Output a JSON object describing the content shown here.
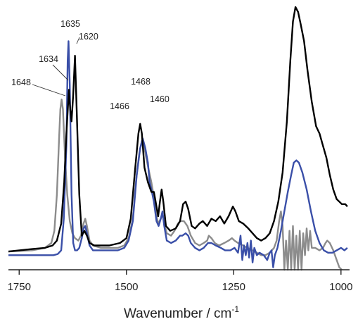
{
  "chart_data": {
    "type": "line",
    "xlabel": "Wavenumber / cm",
    "xlabel_superscript": "-1",
    "xlim": [
      1775,
      980
    ],
    "ylim": [
      -0.06,
      1.02
    ],
    "x_ticks": [
      "1750",
      "1500",
      "1250",
      "1000"
    ],
    "x_tick_values": [
      1750,
      1500,
      1250,
      1000
    ],
    "y_axis": "none",
    "grid": false,
    "legend": "none",
    "series": [
      {
        "color": "#000000",
        "points": [
          [
            1775,
            0.015
          ],
          [
            1720,
            0.025
          ],
          [
            1690,
            0.03
          ],
          [
            1672,
            0.04
          ],
          [
            1662,
            0.06
          ],
          [
            1652,
            0.13
          ],
          [
            1645,
            0.3
          ],
          [
            1640,
            0.5
          ],
          [
            1636,
            0.62
          ],
          [
            1634,
            0.68
          ],
          [
            1631,
            0.6
          ],
          [
            1628,
            0.55
          ],
          [
            1624,
            0.66
          ],
          [
            1620,
            0.82
          ],
          [
            1616,
            0.6
          ],
          [
            1610,
            0.25
          ],
          [
            1604,
            0.08
          ],
          [
            1598,
            0.1
          ],
          [
            1592,
            0.08
          ],
          [
            1586,
            0.05
          ],
          [
            1575,
            0.04
          ],
          [
            1540,
            0.04
          ],
          [
            1515,
            0.05
          ],
          [
            1500,
            0.07
          ],
          [
            1490,
            0.15
          ],
          [
            1480,
            0.35
          ],
          [
            1472,
            0.5
          ],
          [
            1468,
            0.54
          ],
          [
            1464,
            0.5
          ],
          [
            1458,
            0.36
          ],
          [
            1450,
            0.3
          ],
          [
            1442,
            0.26
          ],
          [
            1436,
            0.26
          ],
          [
            1430,
            0.2
          ],
          [
            1426,
            0.16
          ],
          [
            1422,
            0.22
          ],
          [
            1418,
            0.27
          ],
          [
            1414,
            0.22
          ],
          [
            1408,
            0.12
          ],
          [
            1398,
            0.1
          ],
          [
            1385,
            0.11
          ],
          [
            1375,
            0.14
          ],
          [
            1368,
            0.21
          ],
          [
            1362,
            0.22
          ],
          [
            1356,
            0.19
          ],
          [
            1348,
            0.12
          ],
          [
            1340,
            0.11
          ],
          [
            1330,
            0.13
          ],
          [
            1322,
            0.14
          ],
          [
            1312,
            0.12
          ],
          [
            1302,
            0.15
          ],
          [
            1292,
            0.14
          ],
          [
            1282,
            0.16
          ],
          [
            1272,
            0.13
          ],
          [
            1262,
            0.16
          ],
          [
            1252,
            0.2
          ],
          [
            1246,
            0.18
          ],
          [
            1238,
            0.14
          ],
          [
            1228,
            0.13
          ],
          [
            1216,
            0.11
          ],
          [
            1206,
            0.09
          ],
          [
            1196,
            0.07
          ],
          [
            1186,
            0.06
          ],
          [
            1176,
            0.07
          ],
          [
            1166,
            0.09
          ],
          [
            1156,
            0.14
          ],
          [
            1146,
            0.22
          ],
          [
            1136,
            0.34
          ],
          [
            1126,
            0.55
          ],
          [
            1118,
            0.8
          ],
          [
            1112,
            0.96
          ],
          [
            1106,
            1.02
          ],
          [
            1100,
            1.0
          ],
          [
            1094,
            0.95
          ],
          [
            1086,
            0.88
          ],
          [
            1078,
            0.76
          ],
          [
            1068,
            0.63
          ],
          [
            1058,
            0.53
          ],
          [
            1050,
            0.5
          ],
          [
            1042,
            0.45
          ],
          [
            1034,
            0.4
          ],
          [
            1026,
            0.33
          ],
          [
            1018,
            0.27
          ],
          [
            1010,
            0.23
          ],
          [
            1004,
            0.22
          ],
          [
            998,
            0.21
          ],
          [
            990,
            0.21
          ],
          [
            985,
            0.2
          ]
        ]
      },
      {
        "color": "#3a4fa8",
        "points": [
          [
            1775,
            0.0
          ],
          [
            1720,
            0.0
          ],
          [
            1690,
            0.0
          ],
          [
            1670,
            0.0
          ],
          [
            1660,
            0.005
          ],
          [
            1652,
            0.02
          ],
          [
            1646,
            0.15
          ],
          [
            1640,
            0.45
          ],
          [
            1637,
            0.8
          ],
          [
            1635,
            0.88
          ],
          [
            1632,
            0.7
          ],
          [
            1628,
            0.25
          ],
          [
            1624,
            0.05
          ],
          [
            1620,
            0.02
          ],
          [
            1615,
            0.02
          ],
          [
            1610,
            0.03
          ],
          [
            1604,
            0.07
          ],
          [
            1600,
            0.11
          ],
          [
            1596,
            0.12
          ],
          [
            1592,
            0.09
          ],
          [
            1586,
            0.04
          ],
          [
            1578,
            0.02
          ],
          [
            1560,
            0.02
          ],
          [
            1540,
            0.02
          ],
          [
            1520,
            0.02
          ],
          [
            1505,
            0.03
          ],
          [
            1495,
            0.06
          ],
          [
            1485,
            0.14
          ],
          [
            1476,
            0.33
          ],
          [
            1468,
            0.44
          ],
          [
            1462,
            0.48
          ],
          [
            1456,
            0.44
          ],
          [
            1450,
            0.38
          ],
          [
            1446,
            0.3
          ],
          [
            1442,
            0.27
          ],
          [
            1436,
            0.22
          ],
          [
            1430,
            0.14
          ],
          [
            1425,
            0.12
          ],
          [
            1420,
            0.15
          ],
          [
            1416,
            0.18
          ],
          [
            1412,
            0.12
          ],
          [
            1406,
            0.06
          ],
          [
            1396,
            0.05
          ],
          [
            1385,
            0.06
          ],
          [
            1375,
            0.08
          ],
          [
            1370,
            0.08
          ],
          [
            1362,
            0.09
          ],
          [
            1356,
            0.08
          ],
          [
            1350,
            0.05
          ],
          [
            1340,
            0.03
          ],
          [
            1330,
            0.02
          ],
          [
            1320,
            0.03
          ],
          [
            1310,
            0.05
          ],
          [
            1302,
            0.05
          ],
          [
            1292,
            0.04
          ],
          [
            1280,
            0.03
          ],
          [
            1270,
            0.02
          ],
          [
            1258,
            0.02
          ],
          [
            1248,
            0.03
          ],
          [
            1240,
            0.01
          ],
          [
            1234,
            0.08
          ],
          [
            1230,
            -0.02
          ],
          [
            1226,
            0.04
          ],
          [
            1222,
            0.0
          ],
          [
            1218,
            0.05
          ],
          [
            1214,
            -0.01
          ],
          [
            1210,
            0.06
          ],
          [
            1206,
            -0.03
          ],
          [
            1202,
            0.03
          ],
          [
            1196,
            0.0
          ],
          [
            1190,
            0.01
          ],
          [
            1180,
            0.0
          ],
          [
            1172,
            -0.02
          ],
          [
            1166,
            0.01
          ],
          [
            1162,
            0.02
          ],
          [
            1158,
            -0.05
          ],
          [
            1154,
            0.0
          ],
          [
            1148,
            0.03
          ],
          [
            1140,
            0.1
          ],
          [
            1132,
            0.18
          ],
          [
            1124,
            0.26
          ],
          [
            1116,
            0.33
          ],
          [
            1110,
            0.38
          ],
          [
            1104,
            0.39
          ],
          [
            1098,
            0.38
          ],
          [
            1090,
            0.34
          ],
          [
            1080,
            0.27
          ],
          [
            1070,
            0.18
          ],
          [
            1060,
            0.1
          ],
          [
            1050,
            0.05
          ],
          [
            1040,
            0.02
          ],
          [
            1030,
            0.01
          ],
          [
            1020,
            0.01
          ],
          [
            1010,
            0.02
          ],
          [
            1000,
            0.03
          ],
          [
            992,
            0.02
          ],
          [
            985,
            0.03
          ]
        ]
      },
      {
        "color": "#8c8c8c",
        "points": [
          [
            1775,
            0.015
          ],
          [
            1720,
            0.02
          ],
          [
            1690,
            0.03
          ],
          [
            1675,
            0.05
          ],
          [
            1668,
            0.1
          ],
          [
            1662,
            0.25
          ],
          [
            1657,
            0.48
          ],
          [
            1654,
            0.6
          ],
          [
            1651,
            0.64
          ],
          [
            1648,
            0.6
          ],
          [
            1643,
            0.4
          ],
          [
            1638,
            0.25
          ],
          [
            1632,
            0.14
          ],
          [
            1626,
            0.09
          ],
          [
            1620,
            0.07
          ],
          [
            1612,
            0.06
          ],
          [
            1606,
            0.08
          ],
          [
            1600,
            0.13
          ],
          [
            1596,
            0.15
          ],
          [
            1592,
            0.12
          ],
          [
            1586,
            0.06
          ],
          [
            1578,
            0.04
          ],
          [
            1560,
            0.03
          ],
          [
            1540,
            0.03
          ],
          [
            1520,
            0.03
          ],
          [
            1505,
            0.04
          ],
          [
            1495,
            0.07
          ],
          [
            1485,
            0.15
          ],
          [
            1478,
            0.3
          ],
          [
            1470,
            0.42
          ],
          [
            1464,
            0.47
          ],
          [
            1460,
            0.46
          ],
          [
            1454,
            0.4
          ],
          [
            1448,
            0.35
          ],
          [
            1442,
            0.3
          ],
          [
            1436,
            0.24
          ],
          [
            1430,
            0.16
          ],
          [
            1426,
            0.13
          ],
          [
            1420,
            0.15
          ],
          [
            1416,
            0.17
          ],
          [
            1412,
            0.13
          ],
          [
            1406,
            0.09
          ],
          [
            1396,
            0.08
          ],
          [
            1388,
            0.1
          ],
          [
            1380,
            0.13
          ],
          [
            1374,
            0.14
          ],
          [
            1366,
            0.14
          ],
          [
            1358,
            0.12
          ],
          [
            1350,
            0.08
          ],
          [
            1340,
            0.05
          ],
          [
            1330,
            0.04
          ],
          [
            1320,
            0.05
          ],
          [
            1312,
            0.06
          ],
          [
            1308,
            0.08
          ],
          [
            1302,
            0.07
          ],
          [
            1294,
            0.05
          ],
          [
            1284,
            0.04
          ],
          [
            1272,
            0.05
          ],
          [
            1262,
            0.06
          ],
          [
            1254,
            0.07
          ],
          [
            1248,
            0.06
          ],
          [
            1240,
            0.05
          ],
          [
            1228,
            0.04
          ],
          [
            1218,
            0.03
          ],
          [
            1206,
            0.02
          ],
          [
            1196,
            0.01
          ],
          [
            1186,
            0.0
          ],
          [
            1176,
            0.0
          ],
          [
            1166,
            0.01
          ],
          [
            1156,
            0.03
          ],
          [
            1150,
            0.06
          ],
          [
            1144,
            0.14
          ],
          [
            1140,
            0.18
          ],
          [
            1136,
            0.12
          ],
          [
            1132,
            -0.06
          ],
          [
            1128,
            0.06
          ],
          [
            1124,
            -0.06
          ],
          [
            1120,
            0.1
          ],
          [
            1116,
            -0.06
          ],
          [
            1112,
            0.12
          ],
          [
            1108,
            -0.06
          ],
          [
            1104,
            0.08
          ],
          [
            1100,
            -0.06
          ],
          [
            1096,
            0.1
          ],
          [
            1092,
            -0.06
          ],
          [
            1088,
            0.09
          ],
          [
            1084,
            0.0
          ],
          [
            1080,
            0.11
          ],
          [
            1076,
            0.02
          ],
          [
            1072,
            0.1
          ],
          [
            1068,
            0.03
          ],
          [
            1060,
            0.03
          ],
          [
            1050,
            0.02
          ],
          [
            1042,
            0.03
          ],
          [
            1036,
            0.05
          ],
          [
            1032,
            0.06
          ],
          [
            1026,
            0.05
          ],
          [
            1018,
            0.02
          ],
          [
            1010,
            -0.02
          ],
          [
            1004,
            -0.05
          ],
          [
            998,
            -0.06
          ]
        ]
      }
    ],
    "annotations": [
      {
        "text": "1648",
        "x": 1650,
        "y": 0.6
      },
      {
        "text": "1634",
        "x": 1634,
        "y": 0.68
      },
      {
        "text": "1635",
        "x": 1635,
        "y": 0.88
      },
      {
        "text": "1620",
        "x": 1620,
        "y": 0.82
      },
      {
        "text": "1468",
        "x": 1468,
        "y": 0.54
      },
      {
        "text": "1466",
        "x": 1466,
        "y": 0.48
      },
      {
        "text": "1460",
        "x": 1460,
        "y": 0.47
      }
    ]
  }
}
